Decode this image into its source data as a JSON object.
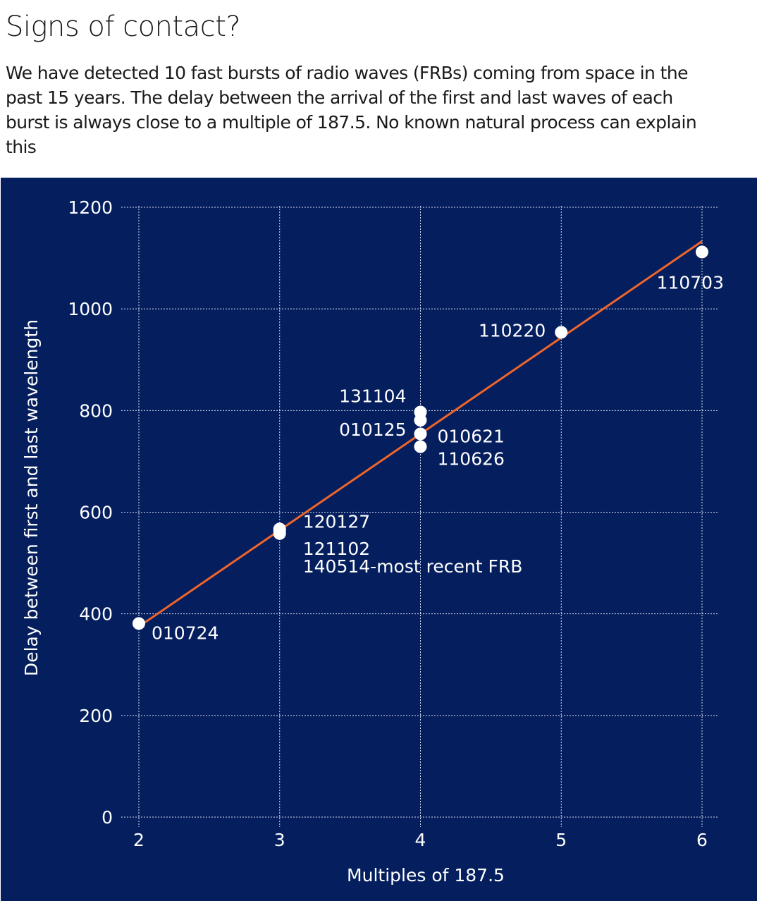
{
  "header": {
    "title": "Signs of contact?",
    "subtitle": "We have detected 10 fast bursts of radio waves (FRBs) coming from space in the past 15 years. The delay between the arrival of the first and last waves of each burst is always close to a multiple of 187.5. No known natural process can explain this"
  },
  "chart_data": {
    "type": "scatter",
    "title": "Signs of contact?",
    "xlabel": "Multiples of 187.5",
    "ylabel": "Delay between first and last wavelength",
    "xlim": [
      2,
      6
    ],
    "ylim": [
      0,
      1200
    ],
    "x_ticks": [
      2,
      3,
      4,
      5,
      6
    ],
    "y_ticks": [
      0,
      200,
      400,
      600,
      800,
      1000,
      1200
    ],
    "grid": true,
    "background_color": "#041e5e",
    "point_color": "#ffffff",
    "trend_color": "#f0652a",
    "points": [
      {
        "x": 2,
        "y": 381,
        "label": "010724"
      },
      {
        "x": 3,
        "y": 567,
        "label": "120127"
      },
      {
        "x": 3,
        "y": 558,
        "label": "121102"
      },
      {
        "x": 3,
        "y": 563,
        "label": "140514-most recent FRB"
      },
      {
        "x": 4,
        "y": 797,
        "label": "131104"
      },
      {
        "x": 4,
        "y": 781,
        "label": "010125"
      },
      {
        "x": 4,
        "y": 754,
        "label": "010621"
      },
      {
        "x": 4,
        "y": 729,
        "label": "110626"
      },
      {
        "x": 5,
        "y": 954,
        "label": "110220"
      },
      {
        "x": 6,
        "y": 1112,
        "label": "110703"
      }
    ],
    "trend_line": {
      "x": [
        2,
        6
      ],
      "y": [
        375,
        1133
      ]
    }
  }
}
